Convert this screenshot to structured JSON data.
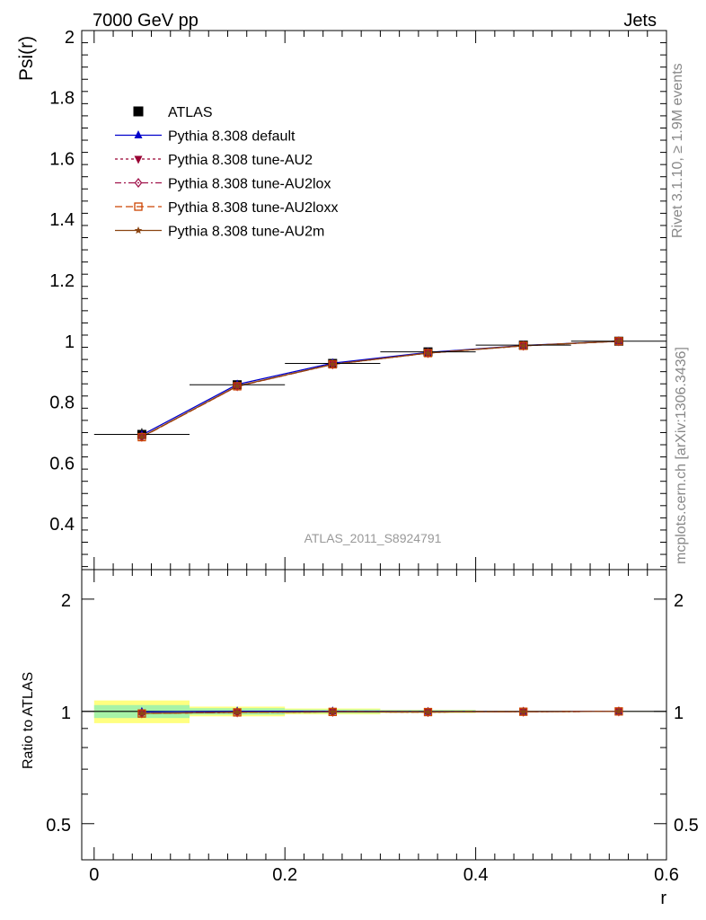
{
  "header": {
    "left": "7000 GeV pp",
    "right": "Jets"
  },
  "side_text": {
    "rivet": "Rivet 3.1.10, ≥ 1.9M events",
    "mcplots": "mcplots.cern.ch [arXiv:1306.3436]"
  },
  "watermark": "ATLAS_2011_S8924791",
  "colors": {
    "data": "#000000",
    "default": "#0000cc",
    "au2": "#990033",
    "au2lox": "#a0124a",
    "au2loxx": "#cc4400",
    "au2m": "#8b4513",
    "band_inner": "#a7f3a7",
    "band_outer": "#ffff80"
  },
  "chart_data": [
    {
      "type": "line",
      "ylabel": "Psi(r)",
      "xlim": [
        -0.013,
        0.6
      ],
      "ylim": [
        0.25,
        2.02
      ],
      "yticks": [
        "0.4",
        "0.6",
        "0.8",
        "1",
        "1.2",
        "1.4",
        "1.6",
        "1.8",
        "2"
      ],
      "x": [
        0.05,
        0.15,
        0.25,
        0.35,
        0.45,
        0.55
      ],
      "legend_position": "top-left",
      "series": [
        {
          "name": "ATLAS",
          "style": "data",
          "marker": "square",
          "values": [
            0.694,
            0.857,
            0.927,
            0.965,
            0.987,
            1.0
          ],
          "errors": [
            0.02,
            0.012,
            0.008,
            0.005,
            0.003,
            0.001
          ]
        },
        {
          "name": "Pythia 8.308 default",
          "style": "solid",
          "marker": "triangle-up",
          "values": [
            0.692,
            0.858,
            0.928,
            0.963,
            0.986,
            1.0
          ]
        },
        {
          "name": "Pythia 8.308 tune-AU2",
          "style": "dotted",
          "marker": "triangle-down",
          "values": [
            0.686,
            0.852,
            0.924,
            0.961,
            0.985,
            1.0
          ]
        },
        {
          "name": "Pythia 8.308 tune-AU2lox",
          "style": "dashdot",
          "marker": "diamond-open",
          "values": [
            0.686,
            0.852,
            0.924,
            0.961,
            0.985,
            1.0
          ]
        },
        {
          "name": "Pythia 8.308 tune-AU2loxx",
          "style": "dashed",
          "marker": "square-open",
          "values": [
            0.685,
            0.852,
            0.924,
            0.961,
            0.985,
            1.0
          ]
        },
        {
          "name": "Pythia 8.308 tune-AU2m",
          "style": "solid",
          "marker": "star",
          "values": [
            0.686,
            0.853,
            0.924,
            0.961,
            0.985,
            1.0
          ]
        }
      ]
    },
    {
      "type": "line",
      "xlabel": "r",
      "ylabel": "Ratio to ATLAS",
      "xlim": [
        -0.013,
        0.6
      ],
      "ylim": [
        0.4,
        2.4
      ],
      "yscale": "log",
      "xticks": [
        "0",
        "0.2",
        "0.4",
        "0.6"
      ],
      "yticks": [
        "0.5",
        "1",
        "2"
      ],
      "x": [
        0.05,
        0.15,
        0.25,
        0.35,
        0.45,
        0.55
      ],
      "bands": {
        "edges": [
          0.0,
          0.1,
          0.2,
          0.3,
          0.4,
          0.5,
          0.6
        ],
        "inner": [
          0.04,
          0.02,
          0.012,
          0.008,
          0.004,
          0.001
        ],
        "outer": [
          0.07,
          0.03,
          0.018,
          0.01,
          0.005,
          0.002
        ]
      },
      "series": [
        {
          "name": "Pythia 8.308 default",
          "values": [
            0.997,
            1.001,
            1.001,
            0.998,
            0.999,
            1.0
          ]
        },
        {
          "name": "Pythia 8.308 tune-AU2",
          "values": [
            0.988,
            0.994,
            0.997,
            0.996,
            0.998,
            1.0
          ]
        },
        {
          "name": "Pythia 8.308 tune-AU2lox",
          "values": [
            0.988,
            0.994,
            0.997,
            0.996,
            0.998,
            1.0
          ]
        },
        {
          "name": "Pythia 8.308 tune-AU2loxx",
          "values": [
            0.987,
            0.994,
            0.997,
            0.996,
            0.998,
            1.0
          ]
        },
        {
          "name": "Pythia 8.308 tune-AU2m",
          "values": [
            0.988,
            0.995,
            0.997,
            0.996,
            0.998,
            1.0
          ]
        }
      ]
    }
  ]
}
